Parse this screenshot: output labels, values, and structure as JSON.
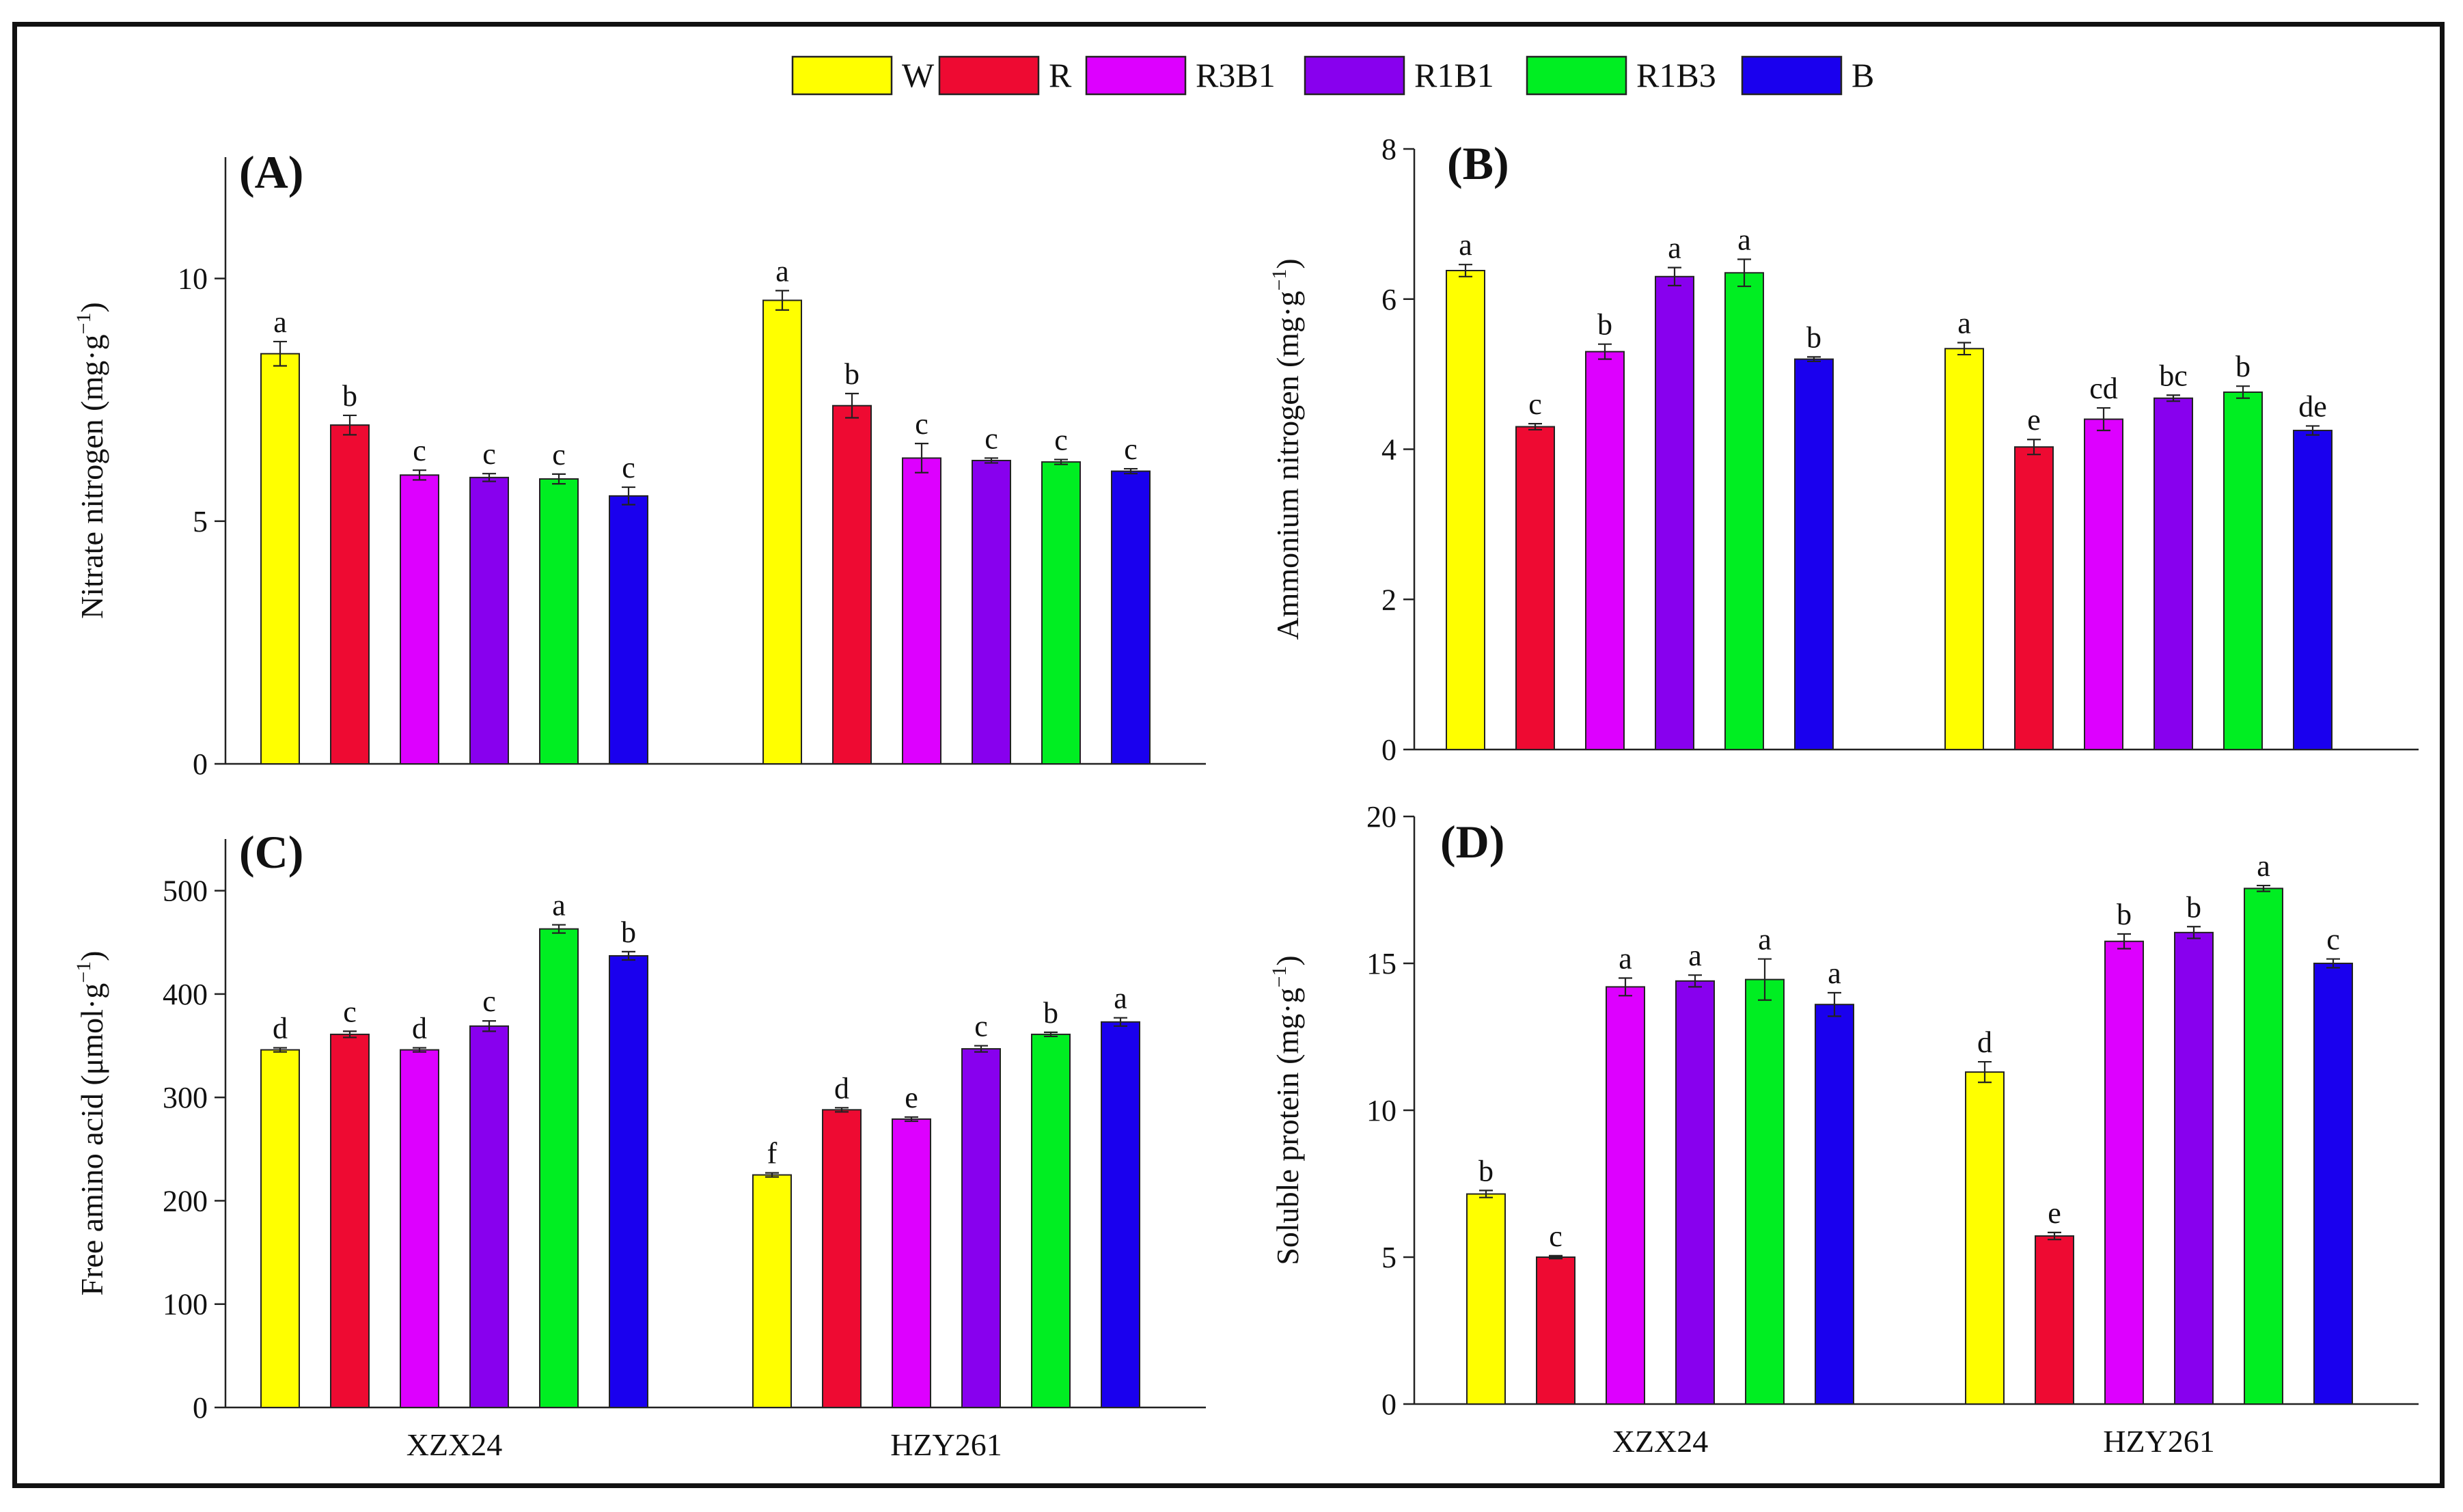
{
  "legend": [
    {
      "label": "W",
      "color": "#ffff00"
    },
    {
      "label": "R",
      "color": "#ee0a32"
    },
    {
      "label": "R3B1",
      "color": "#dd00ff"
    },
    {
      "label": "R1B1",
      "color": "#8800ee"
    },
    {
      "label": "R1B3",
      "color": "#00ee22"
    },
    {
      "label": "B",
      "color": "#1a00ee"
    }
  ],
  "chart_data": [
    {
      "id": "A",
      "type": "bar",
      "panel_label": "(A)",
      "ylabel": "Nitrate nitrogen (mg·g",
      "ylabel_sup": "−1",
      "ylabel_close": ")",
      "ylim": [
        0,
        12.5
      ],
      "yticks": [
        0,
        5,
        10
      ],
      "categories": [
        "",
        ""
      ],
      "series": [
        {
          "name": "W",
          "values": [
            8.45,
            9.55
          ],
          "errors": [
            0.25,
            0.2
          ],
          "letters": [
            "a",
            "a"
          ]
        },
        {
          "name": "R",
          "values": [
            6.98,
            7.38
          ],
          "errors": [
            0.2,
            0.25
          ],
          "letters": [
            "b",
            "b"
          ]
        },
        {
          "name": "R3B1",
          "values": [
            5.95,
            6.3
          ],
          "errors": [
            0.1,
            0.3
          ],
          "letters": [
            "c",
            "c"
          ]
        },
        {
          "name": "R1B1",
          "values": [
            5.9,
            6.25
          ],
          "errors": [
            0.08,
            0.05
          ],
          "letters": [
            "c",
            "c"
          ]
        },
        {
          "name": "R1B3",
          "values": [
            5.87,
            6.22
          ],
          "errors": [
            0.1,
            0.05
          ],
          "letters": [
            "c",
            "c"
          ]
        },
        {
          "name": "B",
          "values": [
            5.52,
            6.03
          ],
          "errors": [
            0.18,
            0.05
          ],
          "letters": [
            "c",
            "c"
          ]
        }
      ]
    },
    {
      "id": "B",
      "type": "bar",
      "panel_label": "(B)",
      "ylabel": "Ammonium nitrogen (mg·g",
      "ylabel_sup": "−1",
      "ylabel_close": ")",
      "ylim": [
        0,
        8
      ],
      "yticks": [
        0,
        2,
        4,
        6,
        8
      ],
      "categories": [
        "",
        ""
      ],
      "series": [
        {
          "name": "W",
          "values": [
            6.38,
            5.34
          ],
          "errors": [
            0.08,
            0.08
          ],
          "letters": [
            "a",
            "a"
          ]
        },
        {
          "name": "R",
          "values": [
            4.3,
            4.03
          ],
          "errors": [
            0.04,
            0.1
          ],
          "letters": [
            "c",
            "e"
          ]
        },
        {
          "name": "R3B1",
          "values": [
            5.3,
            4.4
          ],
          "errors": [
            0.1,
            0.15
          ],
          "letters": [
            "b",
            "cd"
          ]
        },
        {
          "name": "R1B1",
          "values": [
            6.3,
            4.68
          ],
          "errors": [
            0.12,
            0.04
          ],
          "letters": [
            "a",
            "bc"
          ]
        },
        {
          "name": "R1B3",
          "values": [
            6.35,
            4.76
          ],
          "errors": [
            0.18,
            0.08
          ],
          "letters": [
            "a",
            "b"
          ]
        },
        {
          "name": "B",
          "values": [
            5.2,
            4.25
          ],
          "errors": [
            0.03,
            0.06
          ],
          "letters": [
            "b",
            "de"
          ]
        }
      ]
    },
    {
      "id": "C",
      "type": "bar",
      "panel_label": "(C)",
      "ylabel": "Free amino acid (μmol·g",
      "ylabel_sup": "−1",
      "ylabel_close": ")",
      "ylim": [
        0,
        550
      ],
      "yticks": [
        0,
        100,
        200,
        300,
        400,
        500
      ],
      "categories": [
        "XZX24",
        "HZY261"
      ],
      "series": [
        {
          "name": "W",
          "values": [
            346,
            225
          ],
          "errors": [
            2,
            2
          ],
          "letters": [
            "d",
            "f"
          ]
        },
        {
          "name": "R",
          "values": [
            361,
            288
          ],
          "errors": [
            3,
            2
          ],
          "letters": [
            "c",
            "d"
          ]
        },
        {
          "name": "R3B1",
          "values": [
            346,
            279
          ],
          "errors": [
            2,
            2
          ],
          "letters": [
            "d",
            "e"
          ]
        },
        {
          "name": "R1B1",
          "values": [
            369,
            347
          ],
          "errors": [
            5,
            3
          ],
          "letters": [
            "c",
            "c"
          ]
        },
        {
          "name": "R1B3",
          "values": [
            463,
            361
          ],
          "errors": [
            4,
            2
          ],
          "letters": [
            "a",
            "b"
          ]
        },
        {
          "name": "B",
          "values": [
            437,
            373
          ],
          "errors": [
            4,
            4
          ],
          "letters": [
            "b",
            "a"
          ]
        }
      ]
    },
    {
      "id": "D",
      "type": "bar",
      "panel_label": "(D)",
      "ylabel": "Soluble protein (mg·g",
      "ylabel_sup": "−1",
      "ylabel_close": ")",
      "ylim": [
        0,
        20
      ],
      "yticks": [
        0,
        5,
        10,
        15,
        20
      ],
      "categories": [
        "XZX24",
        "HZY261"
      ],
      "series": [
        {
          "name": "W",
          "values": [
            7.15,
            11.3
          ],
          "errors": [
            0.12,
            0.35
          ],
          "letters": [
            "b",
            "d"
          ]
        },
        {
          "name": "R",
          "values": [
            5.0,
            5.72
          ],
          "errors": [
            0.05,
            0.12
          ],
          "letters": [
            "c",
            "e"
          ]
        },
        {
          "name": "R3B1",
          "values": [
            14.2,
            15.75
          ],
          "errors": [
            0.3,
            0.25
          ],
          "letters": [
            "a",
            "b"
          ]
        },
        {
          "name": "R1B1",
          "values": [
            14.4,
            16.05
          ],
          "errors": [
            0.2,
            0.2
          ],
          "letters": [
            "a",
            "b"
          ]
        },
        {
          "name": "R1B3",
          "values": [
            14.45,
            17.55
          ],
          "errors": [
            0.7,
            0.1
          ],
          "letters": [
            "a",
            "a"
          ]
        },
        {
          "name": "B",
          "values": [
            13.6,
            15.0
          ],
          "errors": [
            0.4,
            0.15
          ],
          "letters": [
            "a",
            "c"
          ]
        }
      ]
    }
  ]
}
